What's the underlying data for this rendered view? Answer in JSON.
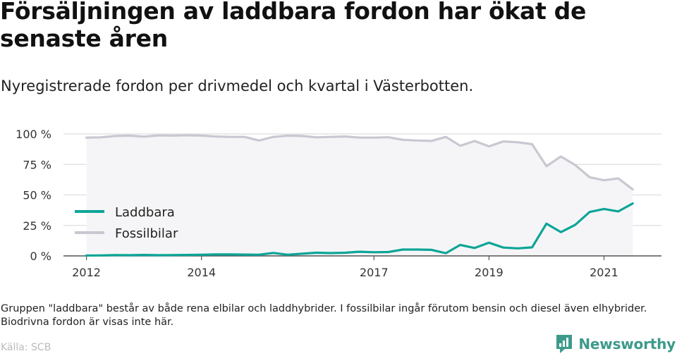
{
  "header": {
    "title": "Försäljningen av laddbara fordon har ökat de senaste åren",
    "subtitle": "Nyregistrerade fordon per drivmedel och kvartal i Västerbotten."
  },
  "footer": {
    "note": "Gruppen \"laddbara\" består av både rena elbilar och laddhybrider. I fossilbilar ingår förutom bensin och diesel även elhybrider. Biodrivna fordon är visas inte här.",
    "source": "Källa: SCB",
    "brand": "Newsworthy"
  },
  "colors": {
    "laddbara": "#0da597",
    "fossil": "#c8c8d2",
    "area": "#f5f5f7",
    "brand": "#3d9a8a"
  },
  "chart_data": {
    "type": "line",
    "title": "Försäljningen av laddbara fordon har ökat de senaste åren",
    "subtitle": "Nyregistrerade fordon per drivmedel och kvartal i Västerbotten.",
    "xlabel": "",
    "ylabel": "",
    "x_start": 2012.0,
    "x_step": 0.25,
    "xlim": [
      2011.6,
      2022.0
    ],
    "ylim": [
      0,
      100
    ],
    "y_ticks": [
      0,
      25,
      50,
      75,
      100
    ],
    "y_tick_labels": [
      "0 %",
      "25 %",
      "50 %",
      "75 %",
      "100 %"
    ],
    "x_ticks": [
      2012,
      2014,
      2017,
      2019,
      2021
    ],
    "x_tick_labels": [
      "2012",
      "2014",
      "2017",
      "2019",
      "2021"
    ],
    "grid": true,
    "legend_position": "bottom-left",
    "series": [
      {
        "name": "Laddbara",
        "values": [
          0.3,
          0.4,
          0.7,
          0.6,
          0.8,
          0.6,
          0.7,
          0.8,
          1.0,
          1.2,
          1.2,
          1.1,
          1.0,
          2.4,
          1.0,
          1.8,
          2.6,
          2.3,
          2.6,
          3.4,
          3.0,
          3.2,
          5.2,
          5.2,
          5.0,
          2.2,
          9.0,
          6.5,
          10.8,
          6.8,
          6.2,
          7.0,
          26.5,
          19.5,
          25.5,
          36.0,
          38.5,
          36.5,
          43.0
        ]
      },
      {
        "name": "Fossilbilar",
        "values": [
          97.0,
          97.2,
          98.3,
          98.6,
          97.8,
          98.8,
          98.6,
          98.9,
          98.6,
          97.9,
          97.6,
          97.6,
          94.6,
          97.6,
          98.6,
          98.3,
          97.2,
          97.6,
          97.9,
          97.0,
          97.0,
          97.3,
          95.2,
          94.6,
          94.3,
          97.6,
          90.3,
          94.2,
          89.8,
          93.9,
          93.2,
          91.6,
          73.5,
          81.5,
          74.5,
          64.5,
          62.0,
          63.5,
          54.5
        ]
      }
    ]
  }
}
